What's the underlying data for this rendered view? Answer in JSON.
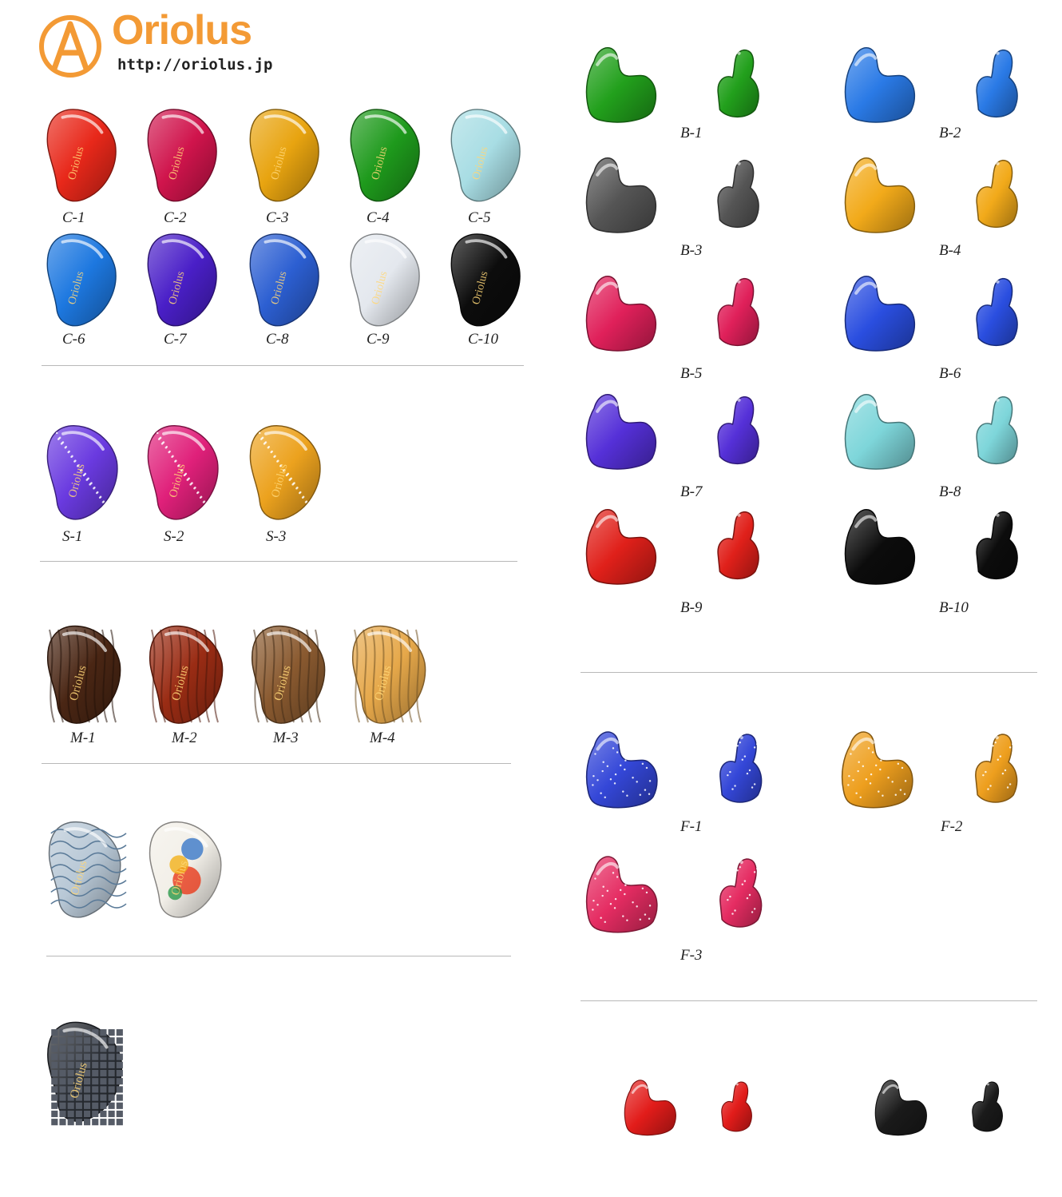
{
  "brand": {
    "name": "Oriolus",
    "url": "http://oriolus.jp",
    "logo_letter": "A",
    "accent_color": "#f39a35"
  },
  "faceplate_word": "Oriolus",
  "solid": [
    {
      "code": "C-1",
      "color": "#e8281a"
    },
    {
      "code": "C-2",
      "color": "#d0144c"
    },
    {
      "code": "C-3",
      "color": "#e8a410"
    },
    {
      "code": "C-4",
      "color": "#1e9a1c"
    },
    {
      "code": "C-5",
      "color": "#a8dde4"
    },
    {
      "code": "C-6",
      "color": "#1d78e0"
    },
    {
      "code": "C-7",
      "color": "#4a1fc8"
    },
    {
      "code": "C-8",
      "color": "#2c5fd2"
    },
    {
      "code": "C-9",
      "color": "#e4e8ee"
    },
    {
      "code": "C-10",
      "color": "#0c0c0c"
    }
  ],
  "sparkle": [
    {
      "code": "S-1",
      "color": "#6a3ae0"
    },
    {
      "code": "S-2",
      "color": "#e0207a"
    },
    {
      "code": "S-3",
      "color": "#eca21e"
    }
  ],
  "wood": [
    {
      "code": "M-1",
      "color": "#4a2614"
    },
    {
      "code": "M-2",
      "color": "#9a2c14"
    },
    {
      "code": "M-3",
      "color": "#8a5a30"
    },
    {
      "code": "M-4",
      "color": "#e6a84a"
    }
  ],
  "art": [
    {
      "color": "#b8c8d6"
    },
    {
      "color": "#f2efe8"
    }
  ],
  "carbon": [
    {
      "color": "#2a2e34"
    }
  ],
  "shells": [
    {
      "code": "B-1",
      "color": "#22a01c"
    },
    {
      "code": "B-2",
      "color": "#2a7ae6"
    },
    {
      "code": "B-3",
      "color": "#555555"
    },
    {
      "code": "B-4",
      "color": "#f2aa1a"
    },
    {
      "code": "B-5",
      "color": "#e0205a"
    },
    {
      "code": "B-6",
      "color": "#2a4ee0"
    },
    {
      "code": "B-7",
      "color": "#5530d8"
    },
    {
      "code": "B-8",
      "color": "#7ed6da"
    },
    {
      "code": "B-9",
      "color": "#e0201a"
    },
    {
      "code": "B-10",
      "color": "#0c0c0c"
    }
  ],
  "glitter_shells": [
    {
      "code": "F-1",
      "color": "#3447d8"
    },
    {
      "code": "F-2",
      "color": "#ee9f1e"
    },
    {
      "code": "F-3",
      "color": "#e52c62"
    }
  ],
  "showcase": [
    {
      "color": "#e21c1a"
    },
    {
      "color": "#1a1a1a"
    }
  ]
}
